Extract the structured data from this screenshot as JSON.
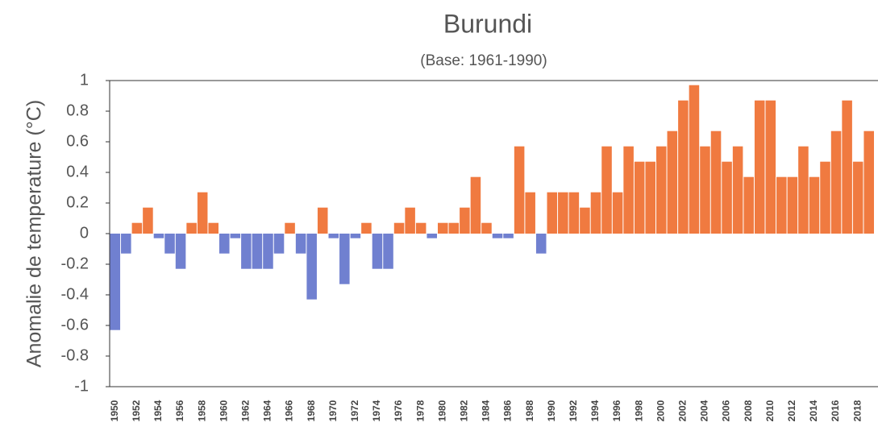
{
  "chart_data": {
    "type": "bar",
    "title": "Burundi",
    "subtitle": "(Base: 1961-1990)",
    "y_label": "Anomalie de temperature (°C)",
    "categories": [
      "1950",
      null,
      "1952",
      null,
      "1954",
      null,
      "1956",
      null,
      "1958",
      null,
      "1960",
      null,
      "1962",
      null,
      "1964",
      null,
      "1966",
      null,
      "1968",
      null,
      "1970",
      null,
      "1972",
      null,
      "1974",
      null,
      "1976",
      null,
      "1978",
      null,
      "1980",
      null,
      "1982",
      null,
      "1984",
      null,
      "1986",
      null,
      "1988",
      null,
      "1990",
      null,
      "1992",
      null,
      "1994",
      null,
      "1996",
      null,
      "1998",
      null,
      "2000",
      null,
      "2002",
      null,
      "2004",
      null,
      "2006",
      null,
      "2008",
      null,
      "2010",
      null,
      "2012",
      null,
      "2014",
      null,
      "2016",
      null,
      "2018",
      null
    ],
    "values": [
      -0.63,
      -0.13,
      0.07,
      0.17,
      -0.03,
      -0.13,
      -0.23,
      0.07,
      0.27,
      0.07,
      -0.13,
      -0.03,
      -0.23,
      -0.23,
      -0.23,
      -0.13,
      0.07,
      -0.13,
      -0.43,
      0.17,
      -0.03,
      -0.33,
      -0.03,
      0.07,
      -0.23,
      -0.23,
      0.07,
      0.17,
      0.07,
      -0.03,
      0.07,
      0.07,
      0.17,
      0.37,
      0.07,
      -0.03,
      -0.03,
      0.57,
      0.27,
      -0.13,
      0.27,
      0.27,
      0.27,
      0.17,
      0.27,
      0.57,
      0.27,
      0.57,
      0.47,
      0.47,
      0.57,
      0.67,
      0.87,
      0.97,
      0.57,
      0.67,
      0.47,
      0.57,
      0.37,
      0.87,
      0.87,
      0.37,
      0.37,
      0.57,
      0.37,
      0.47,
      0.67,
      0.87,
      0.47,
      0.67
    ],
    "positive_color": "#f07a40",
    "negative_color": "#7080d0",
    "ylim": [
      -1,
      1
    ],
    "yticks": [
      -1,
      -0.8,
      -0.6,
      -0.4,
      -0.2,
      0,
      0.2,
      0.4,
      0.6,
      0.8,
      1
    ],
    "grid": false
  }
}
